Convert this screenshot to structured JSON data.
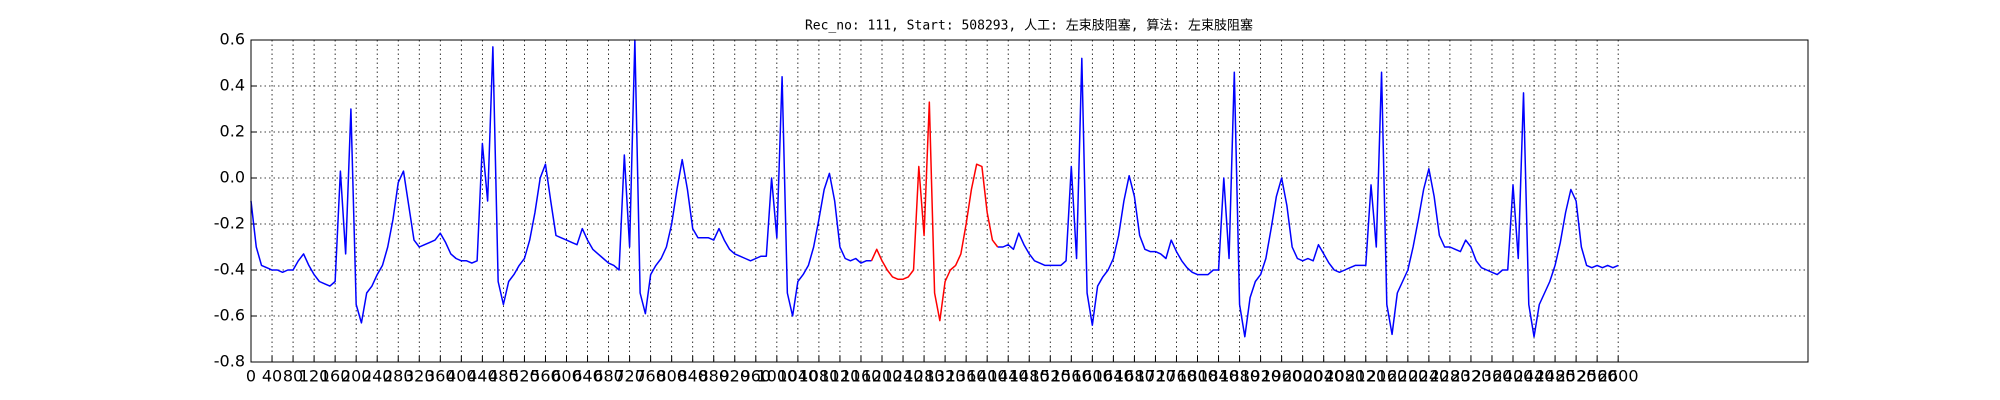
{
  "chart_data": {
    "type": "line",
    "title": "Rec_no: 111, Start: 508293, 人工: 左束肢阻塞, 算法: 左束肢阻塞",
    "grid": true,
    "xlim": [
      0,
      2961
    ],
    "ylim": [
      -0.8,
      0.6
    ],
    "yticks": [
      -0.8,
      -0.6,
      -0.4,
      -0.2,
      {
        "value": 0,
        "label": "0.0"
      },
      0.2,
      0.4,
      0.6
    ],
    "xticks": [
      0,
      40,
      80,
      120,
      160,
      200,
      240,
      280,
      320,
      360,
      400,
      440,
      480,
      520,
      560,
      600,
      640,
      680,
      720,
      760,
      800,
      840,
      880,
      920,
      960,
      1000,
      1040,
      1080,
      1120,
      1160,
      1200,
      1240,
      1280,
      1320,
      1360,
      1400,
      1440,
      1480,
      1520,
      1560,
      1600,
      1640,
      1680,
      1720,
      1760,
      1800,
      1840,
      1880,
      1920,
      1960,
      2000,
      2040,
      2080,
      2120,
      2160,
      2200,
      2240,
      2280,
      2320,
      2360,
      2400,
      2440,
      2480,
      2520,
      2560,
      2600
    ],
    "x": [
      0,
      10,
      20,
      30,
      40,
      50,
      60,
      70,
      80,
      90,
      100,
      110,
      120,
      130,
      140,
      150,
      160,
      170,
      180,
      190,
      200,
      210,
      220,
      230,
      240,
      250,
      260,
      270,
      280,
      290,
      300,
      310,
      320,
      330,
      340,
      350,
      360,
      370,
      380,
      390,
      400,
      410,
      420,
      430,
      440,
      450,
      460,
      470,
      480,
      490,
      500,
      510,
      520,
      530,
      540,
      550,
      560,
      570,
      580,
      590,
      600,
      610,
      620,
      630,
      640,
      650,
      660,
      670,
      680,
      690,
      700,
      710,
      720,
      730,
      740,
      750,
      760,
      770,
      780,
      790,
      800,
      810,
      820,
      830,
      840,
      850,
      860,
      870,
      880,
      890,
      900,
      910,
      920,
      930,
      940,
      950,
      960,
      970,
      980,
      990,
      1000,
      1010,
      1020,
      1030,
      1040,
      1050,
      1060,
      1070,
      1080,
      1090,
      1100,
      1110,
      1120,
      1130,
      1140,
      1150,
      1160,
      1170,
      1180,
      1190,
      1200,
      1210,
      1220,
      1230,
      1240,
      1250,
      1260,
      1270,
      1280,
      1290,
      1300,
      1310,
      1320,
      1330,
      1340,
      1350,
      1360,
      1370,
      1380,
      1390,
      1400,
      1410,
      1420,
      1430,
      1440,
      1450,
      1460,
      1470,
      1480,
      1490,
      1500,
      1510,
      1520,
      1530,
      1540,
      1550,
      1560,
      1570,
      1580,
      1590,
      1600,
      1610,
      1620,
      1630,
      1640,
      1650,
      1660,
      1670,
      1680,
      1690,
      1700,
      1710,
      1720,
      1730,
      1740,
      1750,
      1760,
      1770,
      1780,
      1790,
      1800,
      1810,
      1820,
      1830,
      1840,
      1850,
      1860,
      1870,
      1880,
      1890,
      1900,
      1910,
      1920,
      1930,
      1940,
      1950,
      1960,
      1970,
      1980,
      1990,
      2000,
      2010,
      2020,
      2030,
      2040,
      2050,
      2060,
      2070,
      2080,
      2090,
      2100,
      2110,
      2120,
      2130,
      2140,
      2150,
      2160,
      2170,
      2180,
      2190,
      2200,
      2210,
      2220,
      2230,
      2240,
      2250,
      2260,
      2270,
      2280,
      2290,
      2300,
      2310,
      2320,
      2330,
      2340,
      2350,
      2360,
      2370,
      2380,
      2390,
      2400,
      2410,
      2420,
      2430,
      2440,
      2450,
      2460,
      2470,
      2480,
      2490,
      2500,
      2510,
      2520,
      2530,
      2540,
      2550,
      2560,
      2570,
      2580,
      2590,
      2600
    ],
    "series": [
      {
        "color": "#0000ff",
        "values": [
          -0.1,
          -0.3,
          -0.38,
          -0.39,
          -0.4,
          -0.4,
          -0.41,
          -0.4,
          -0.4,
          -0.36,
          -0.33,
          -0.38,
          -0.42,
          -0.45,
          -0.46,
          -0.47,
          -0.45,
          0.03,
          -0.33,
          0.3,
          -0.55,
          -0.63,
          -0.5,
          -0.47,
          -0.42,
          -0.38,
          -0.3,
          -0.18,
          -0.02,
          0.03,
          -0.12,
          -0.27,
          -0.3,
          -0.29,
          -0.28,
          -0.27,
          -0.24,
          -0.28,
          -0.33,
          -0.35,
          -0.36,
          -0.36,
          -0.37,
          -0.36,
          0.15,
          -0.1,
          0.57,
          -0.45,
          -0.55,
          -0.45,
          -0.42,
          -0.38,
          -0.35,
          -0.27,
          -0.15,
          0.0,
          0.06,
          -0.1,
          -0.25,
          -0.26,
          -0.27,
          -0.28,
          -0.29,
          -0.22,
          -0.27,
          -0.31,
          -0.33,
          -0.35,
          -0.37,
          -0.38,
          -0.4,
          0.1,
          -0.3,
          0.6,
          -0.5,
          -0.59,
          -0.42,
          -0.38,
          -0.35,
          -0.3,
          -0.2,
          -0.05,
          0.08,
          -0.05,
          -0.22,
          -0.26,
          -0.26,
          -0.26,
          -0.27,
          -0.22,
          -0.27,
          -0.31,
          -0.33,
          -0.34,
          -0.35,
          -0.36,
          -0.35,
          -0.34,
          -0.34,
          0.0,
          -0.26,
          0.44,
          -0.5,
          -0.6,
          -0.45,
          -0.42,
          -0.38,
          -0.3,
          -0.18,
          -0.05,
          0.02,
          -0.1,
          -0.3,
          -0.35,
          -0.36,
          -0.35,
          -0.37,
          -0.36,
          -0.36,
          null,
          null,
          null,
          null,
          null,
          null,
          null,
          null,
          null,
          null,
          null,
          null,
          null,
          null,
          null,
          null,
          null,
          null,
          null,
          null,
          null,
          null,
          null,
          -0.3,
          -0.3,
          -0.29,
          -0.31,
          -0.24,
          -0.29,
          -0.33,
          -0.36,
          -0.37,
          -0.38,
          -0.38,
          -0.38,
          -0.38,
          -0.36,
          0.05,
          -0.35,
          0.52,
          -0.5,
          -0.64,
          -0.47,
          -0.43,
          -0.4,
          -0.35,
          -0.25,
          -0.1,
          0.01,
          -0.08,
          -0.25,
          -0.31,
          -0.32,
          -0.32,
          -0.33,
          -0.35,
          -0.27,
          -0.32,
          -0.36,
          -0.39,
          -0.41,
          -0.42,
          -0.42,
          -0.42,
          -0.4,
          -0.4,
          0.0,
          -0.35,
          0.46,
          -0.55,
          -0.69,
          -0.52,
          -0.45,
          -0.42,
          -0.35,
          -0.22,
          -0.08,
          0.0,
          -0.12,
          -0.3,
          -0.35,
          -0.36,
          -0.35,
          -0.36,
          -0.29,
          -0.33,
          -0.37,
          -0.4,
          -0.41,
          -0.4,
          -0.39,
          -0.38,
          -0.38,
          -0.38,
          -0.03,
          -0.3,
          0.46,
          -0.55,
          -0.68,
          -0.5,
          -0.45,
          -0.4,
          -0.3,
          -0.18,
          -0.05,
          0.04,
          -0.08,
          -0.25,
          -0.3,
          -0.3,
          -0.31,
          -0.32,
          -0.27,
          -0.3,
          -0.36,
          -0.39,
          -0.4,
          -0.41,
          -0.42,
          -0.4,
          -0.4,
          -0.03,
          -0.35,
          0.37,
          -0.55,
          -0.69,
          -0.55,
          -0.5,
          -0.45,
          -0.38,
          -0.28,
          -0.15,
          -0.05,
          -0.1,
          -0.3,
          -0.38,
          -0.39,
          -0.38,
          -0.39,
          -0.38,
          -0.39,
          -0.38
        ]
      },
      {
        "color": "#ff0000",
        "x": [
          1180,
          1190,
          1200,
          1210,
          1220,
          1230,
          1240,
          1250,
          1260,
          1270,
          1280,
          1290,
          1300,
          1310,
          1320,
          1330,
          1340,
          1350,
          1360,
          1370,
          1380,
          1390,
          1400,
          1410,
          1420
        ],
        "values": [
          -0.36,
          -0.31,
          -0.36,
          -0.4,
          -0.43,
          -0.44,
          -0.44,
          -0.43,
          -0.4,
          0.05,
          -0.25,
          0.33,
          -0.5,
          -0.62,
          -0.45,
          -0.4,
          -0.38,
          -0.33,
          -0.2,
          -0.05,
          0.06,
          0.05,
          -0.15,
          -0.27,
          -0.3
        ]
      }
    ]
  }
}
